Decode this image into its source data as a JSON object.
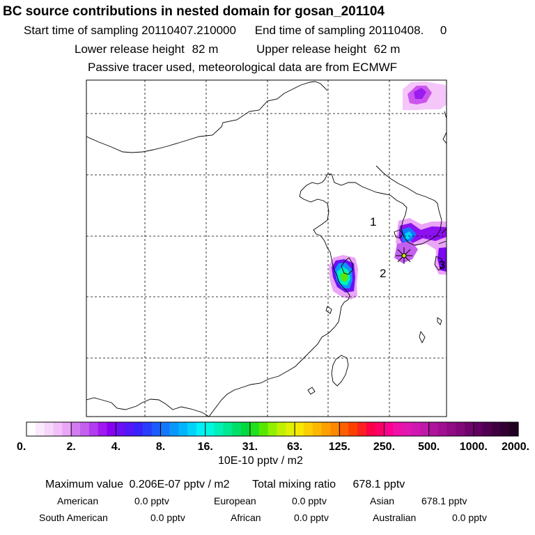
{
  "chart_data": {
    "type": "heatmap",
    "title": "BC  source contributions in nested domain for gosan_201104",
    "sampling": {
      "start_label": "Start time of sampling",
      "start_value": "20110407.210000",
      "end_label": "End time of sampling",
      "end_value": "20110408.     0"
    },
    "release": {
      "lower_label": "Lower release height",
      "lower_value": "82 m",
      "upper_label": "Upper release height",
      "upper_value": "62 m"
    },
    "note": "Passive tracer used, meteorological data are from ECMWF",
    "map_labels": [
      "1",
      "2",
      "3"
    ],
    "colorbar": {
      "tick_labels": [
        "0.",
        "2.",
        "4.",
        "8.",
        "16.",
        "31.",
        "63.",
        "125.",
        "250.",
        "500.",
        "1000.",
        "2000."
      ],
      "colors": [
        "#ffffff",
        "#fbe9fd",
        "#f6d6fb",
        "#f1c0f9",
        "#eba5f7",
        "#d37bf0",
        "#c45ff0",
        "#b23cf0",
        "#9f19f0",
        "#8800f0",
        "#6b10f4",
        "#5218f7",
        "#3a22fa",
        "#2a3cfc",
        "#1a5cfd",
        "#1478fd",
        "#0a96fd",
        "#00b4fd",
        "#00d2fc",
        "#00f0f8",
        "#00f8e0",
        "#00f0b8",
        "#00e890",
        "#00e068",
        "#00d840",
        "#20e020",
        "#58e800",
        "#90f000",
        "#c0f000",
        "#e0f000",
        "#f8e800",
        "#fcd000",
        "#fcb800",
        "#fca000",
        "#fc8800",
        "#fc6000",
        "#fc4000",
        "#fc2020",
        "#fc0048",
        "#fc0068",
        "#fc0090",
        "#f010a8",
        "#e018b0",
        "#d018b0",
        "#c018a8",
        "#b0149c",
        "#a01090",
        "#900c84",
        "#800878",
        "#70046c",
        "#600060",
        "#500050",
        "#400040",
        "#300030",
        "#200020"
      ]
    },
    "unit": "10E-10 pptv / m2",
    "summary": {
      "max_label": "Maximum value",
      "max_value": "0.206E-07 pptv / m2",
      "total_label": "Total mixing ratio",
      "total_value": "678.1 pptv"
    },
    "regions": [
      {
        "name": "American",
        "value": "0.0 pptv"
      },
      {
        "name": "European",
        "value": "0.0 pptv"
      },
      {
        "name": "Asian",
        "value": "678.1 pptv"
      },
      {
        "name": "South American",
        "value": "0.0 pptv"
      },
      {
        "name": "African",
        "value": "0.0 pptv"
      },
      {
        "name": "Australian",
        "value": "0.0 pptv"
      }
    ]
  }
}
